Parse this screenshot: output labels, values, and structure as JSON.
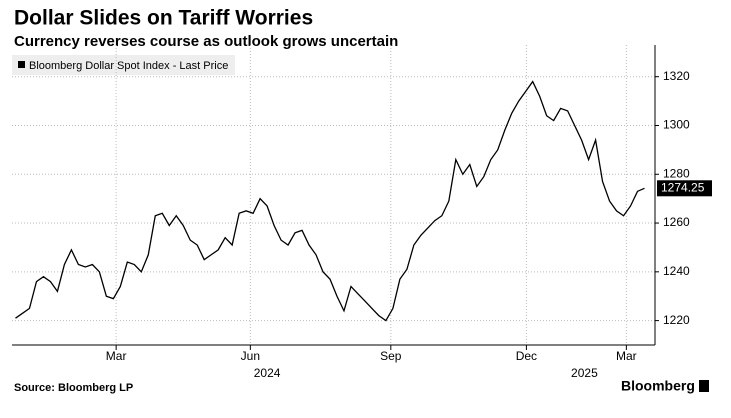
{
  "chart_data": {
    "type": "line",
    "title": "Dollar Slides on Tariff Worries",
    "subtitle": "Currency reverses course as outlook grows uncertain",
    "source": "Source: Bloomberg LP",
    "brand": "Bloomberg",
    "series": [
      {
        "name": "Bloomberg Dollar Spot Index - Last Price",
        "color": "#000000",
        "values": [
          1221,
          1223,
          1225,
          1236,
          1238,
          1236,
          1232,
          1243,
          1249,
          1243,
          1242,
          1243,
          1240,
          1230,
          1229,
          1234,
          1244,
          1243,
          1240,
          1247,
          1263,
          1264,
          1259,
          1263,
          1259,
          1253,
          1251,
          1245,
          1247,
          1249,
          1254,
          1251,
          1264,
          1265,
          1264,
          1270,
          1267,
          1259,
          1253,
          1251,
          1256,
          1257,
          1251,
          1247,
          1240,
          1237,
          1230,
          1224,
          1234,
          1231,
          1228,
          1225,
          1222,
          1220,
          1225,
          1237,
          1241,
          1251,
          1255,
          1258,
          1261,
          1263,
          1269,
          1286,
          1280,
          1284,
          1275,
          1279,
          1286,
          1290,
          1298,
          1305,
          1310,
          1314,
          1318,
          1312,
          1304,
          1302,
          1307,
          1306,
          1300,
          1294,
          1286,
          1294,
          1277,
          1269,
          1265,
          1263,
          1267,
          1273,
          1274.25
        ]
      }
    ],
    "xlim": [
      -0.5,
      91.5
    ],
    "xticks": [
      {
        "value": 14.4,
        "label": "Mar"
      },
      {
        "value": 33.6,
        "label": "Jun"
      },
      {
        "value": 53.7,
        "label": "Sep"
      },
      {
        "value": 73.1,
        "label": "Dec"
      },
      {
        "value": 87.4,
        "label": "Mar"
      }
    ],
    "year_labels": [
      {
        "value": 36,
        "label": "2024"
      },
      {
        "value": 81.4,
        "label": "2025"
      }
    ],
    "ylim": [
      1210,
      1333
    ],
    "yticks": [
      1220,
      1240,
      1260,
      1280,
      1300,
      1320
    ],
    "grid": true
  }
}
